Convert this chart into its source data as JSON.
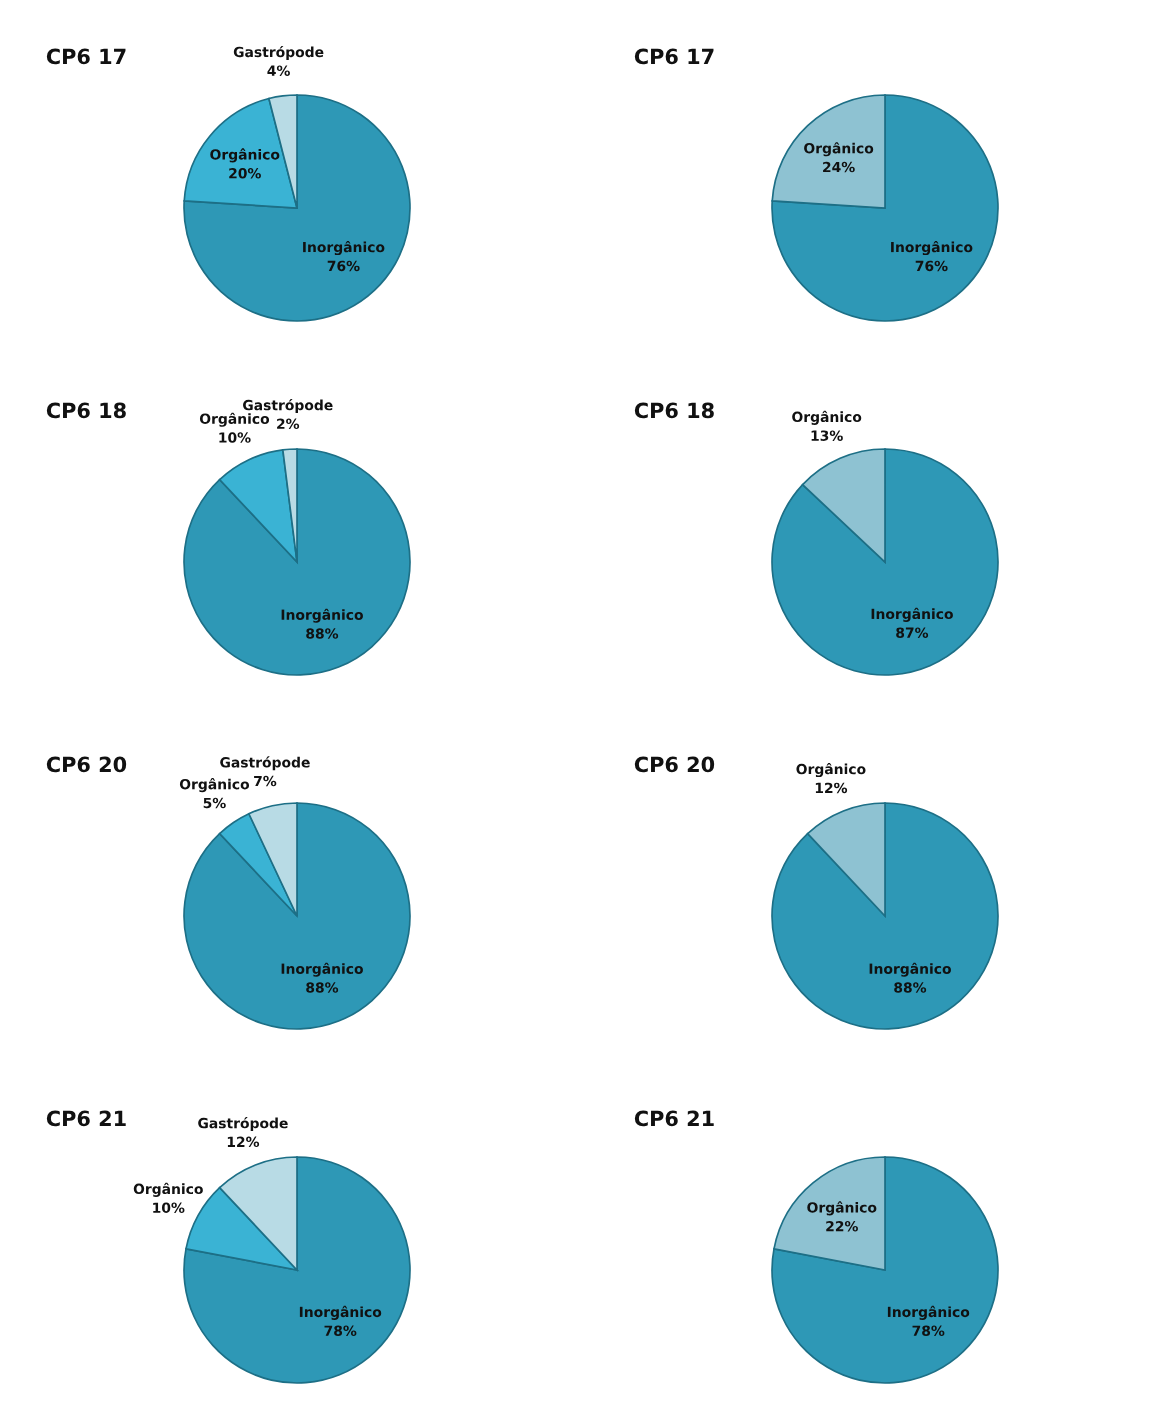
{
  "chart_data": [
    {
      "type": "pie",
      "title": "CP6 17",
      "categories": [
        "Inorgânico",
        "Orgânico",
        "Gastrópode"
      ],
      "values": [
        76,
        20,
        4
      ],
      "value_labels": [
        "76%",
        "20%",
        "4%"
      ],
      "colors": [
        "#2e98b6",
        "#3ab3d4",
        "#b8dbe5"
      ],
      "legend": false
    },
    {
      "type": "pie",
      "title": "CP6 17",
      "categories": [
        "Inorgânico",
        "Orgânico"
      ],
      "values": [
        76,
        24
      ],
      "value_labels": [
        "76%",
        "24%"
      ],
      "colors": [
        "#2e98b6",
        "#8ec2d2"
      ],
      "legend": false
    },
    {
      "type": "pie",
      "title": "CP6 18",
      "categories": [
        "Inorgânico",
        "Orgânico",
        "Gastrópode"
      ],
      "values": [
        88,
        10,
        2
      ],
      "value_labels": [
        "88%",
        "10%",
        "2%"
      ],
      "colors": [
        "#2e98b6",
        "#3ab3d4",
        "#b8dbe5"
      ],
      "legend": false
    },
    {
      "type": "pie",
      "title": "CP6 18",
      "categories": [
        "Inorgânico",
        "Orgânico"
      ],
      "values": [
        87,
        13
      ],
      "value_labels": [
        "87%",
        "13%"
      ],
      "colors": [
        "#2e98b6",
        "#8ec2d2"
      ],
      "legend": false
    },
    {
      "type": "pie",
      "title": "CP6 20",
      "categories": [
        "Inorgânico",
        "Orgânico",
        "Gastrópode"
      ],
      "values": [
        88,
        5,
        7
      ],
      "value_labels": [
        "88%",
        "5%",
        "7%"
      ],
      "colors": [
        "#2e98b6",
        "#3ab3d4",
        "#b8dbe5"
      ],
      "legend": false
    },
    {
      "type": "pie",
      "title": "CP6 20",
      "categories": [
        "Inorgânico",
        "Orgânico"
      ],
      "values": [
        88,
        12
      ],
      "value_labels": [
        "88%",
        "12%"
      ],
      "colors": [
        "#2e98b6",
        "#8ec2d2"
      ],
      "legend": false
    },
    {
      "type": "pie",
      "title": "CP6 21",
      "categories": [
        "Inorgânico",
        "Orgânico",
        "Gastrópode"
      ],
      "values": [
        78,
        10,
        12
      ],
      "value_labels": [
        "78%",
        "10%",
        "12%"
      ],
      "colors": [
        "#2e98b6",
        "#3ab3d4",
        "#b8dbe5"
      ],
      "legend": false
    },
    {
      "type": "pie",
      "title": "CP6 21",
      "categories": [
        "Inorgânico",
        "Orgânico"
      ],
      "values": [
        78,
        22
      ],
      "value_labels": [
        "78%",
        "22%"
      ],
      "colors": [
        "#2e98b6",
        "#8ec2d2"
      ],
      "legend": false
    }
  ]
}
